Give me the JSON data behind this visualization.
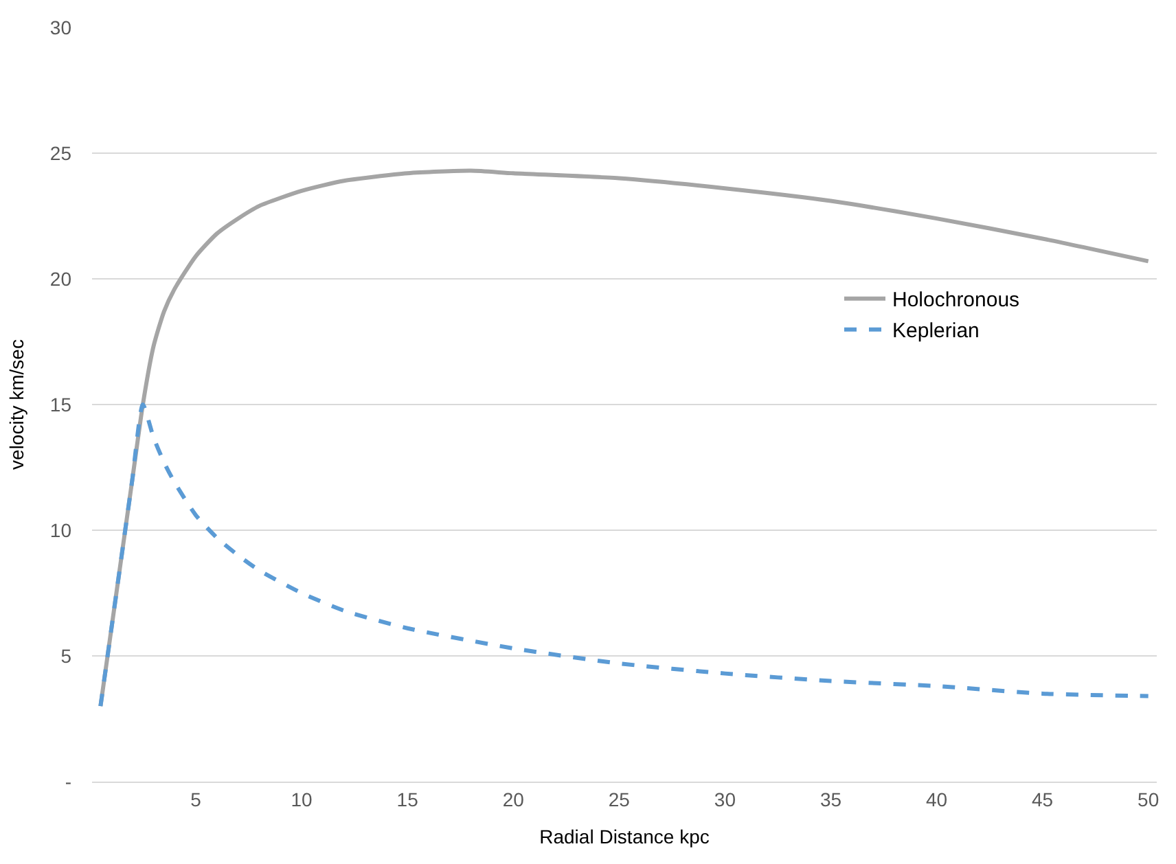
{
  "chart_data": {
    "type": "line",
    "xlabel": "Radial Distance kpc",
    "ylabel": "velocity km/sec",
    "xlim": [
      0.1,
      50.4
    ],
    "xticks": [
      5,
      10,
      15,
      20,
      25,
      30,
      35,
      40,
      45,
      50
    ],
    "ylim": [
      0,
      30
    ],
    "yticks": [
      {
        "value": 0,
        "label": "-"
      },
      5,
      10,
      15,
      20,
      25,
      30
    ],
    "grid": "y",
    "legend": "right",
    "marker": "none",
    "series": [
      {
        "name": "Holochronous",
        "color": "#a5a5a5",
        "line_style": "solid",
        "x": [
          0.5,
          1,
          1.5,
          2,
          2.5,
          3,
          3.5,
          4,
          5,
          6,
          7,
          8,
          10,
          12,
          15,
          18,
          20,
          25,
          30,
          35,
          40,
          45,
          50
        ],
        "values": [
          3,
          6,
          9,
          12,
          15,
          17.3,
          18.7,
          19.6,
          20.9,
          21.8,
          22.4,
          22.9,
          23.5,
          23.9,
          24.2,
          24.3,
          24.2,
          24.0,
          23.6,
          23.1,
          22.4,
          21.6,
          20.7
        ]
      },
      {
        "name": "Keplerian",
        "color": "#5b9bd5",
        "line_style": "dashed",
        "x": [
          0.5,
          1,
          1.5,
          2,
          2.5,
          3,
          3.5,
          4,
          5,
          6,
          7,
          8,
          10,
          12,
          15,
          20,
          25,
          30,
          35,
          40,
          45,
          50
        ],
        "values": [
          3,
          6,
          9,
          12,
          15,
          13.7,
          12.7,
          11.9,
          10.6,
          9.7,
          9.0,
          8.4,
          7.5,
          6.8,
          6.1,
          5.3,
          4.7,
          4.3,
          4.0,
          3.8,
          3.5,
          3.4
        ]
      }
    ]
  }
}
